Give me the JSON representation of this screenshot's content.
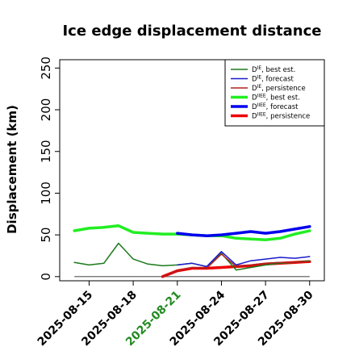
{
  "chart_data": {
    "type": "line",
    "title": "Ice edge displacement distance",
    "xlabel": "",
    "ylabel": "Displacement (km)",
    "ylim": [
      -5,
      260
    ],
    "yticks": [
      0,
      50,
      100,
      150,
      200,
      250
    ],
    "xlim": [
      "2025-08-13",
      "2025-08-31"
    ],
    "xticks": [
      "2025-08-15",
      "2025-08-18",
      "2025-08-21",
      "2025-08-24",
      "2025-08-27",
      "2025-08-30"
    ],
    "highlight_tick": "2025-08-21",
    "grid": false,
    "legend_position": "top-right",
    "colors": {
      "highlight": "#228B22",
      "axis": "#000000"
    },
    "reference_line": {
      "y": 0,
      "x_from": "2025-08-14",
      "x_to": "2025-08-30",
      "color": "#555555"
    },
    "series": [
      {
        "legend": "D_IE best est.",
        "legend_main": "D",
        "legend_sup": "IE",
        "legend_rest": ", best est.",
        "color": "#1a7a1a",
        "width": 1.5,
        "x": [
          "2025-08-14",
          "2025-08-15",
          "2025-08-16",
          "2025-08-17",
          "2025-08-18",
          "2025-08-19",
          "2025-08-20",
          "2025-08-21",
          "2025-08-22",
          "2025-08-23",
          "2025-08-24",
          "2025-08-25",
          "2025-08-26",
          "2025-08-27",
          "2025-08-28",
          "2025-08-29",
          "2025-08-30"
        ],
        "y": [
          17,
          14,
          16,
          40,
          21,
          15,
          13,
          14,
          16,
          12,
          28,
          8,
          11,
          14,
          16,
          17,
          19
        ]
      },
      {
        "legend": "D_IE forecast",
        "legend_main": "D",
        "legend_sup": "IE",
        "legend_rest": ", forecast",
        "color": "#1a1acc",
        "width": 1.5,
        "x": [
          "2025-08-21",
          "2025-08-22",
          "2025-08-23",
          "2025-08-24",
          "2025-08-25",
          "2025-08-26",
          "2025-08-27",
          "2025-08-28",
          "2025-08-29",
          "2025-08-30"
        ],
        "y": [
          14,
          16,
          12,
          30,
          14,
          19,
          21,
          23,
          22,
          24
        ]
      },
      {
        "legend": "D_IE persistence",
        "legend_main": "D",
        "legend_sup": "IE",
        "legend_rest": ", persistence",
        "color": "#b22222",
        "width": 1.5,
        "x": [
          "2025-08-20",
          "2025-08-21",
          "2025-08-22",
          "2025-08-23",
          "2025-08-24",
          "2025-08-25",
          "2025-08-26",
          "2025-08-27",
          "2025-08-28",
          "2025-08-29",
          "2025-08-30"
        ],
        "y": [
          0,
          7,
          11,
          10,
          27,
          12,
          14,
          16,
          17,
          17,
          18
        ]
      },
      {
        "legend": "D_IIEE best est.",
        "legend_main": "D",
        "legend_sup": "IIEE",
        "legend_rest": ", best est.",
        "color": "#22ee22",
        "width": 3.5,
        "x": [
          "2025-08-14",
          "2025-08-15",
          "2025-08-16",
          "2025-08-17",
          "2025-08-18",
          "2025-08-19",
          "2025-08-20",
          "2025-08-21",
          "2025-08-22",
          "2025-08-23",
          "2025-08-24",
          "2025-08-25",
          "2025-08-26",
          "2025-08-27",
          "2025-08-28",
          "2025-08-29",
          "2025-08-30"
        ],
        "y": [
          55,
          58,
          59,
          61,
          53,
          52,
          51,
          51,
          50,
          49,
          49,
          46,
          45,
          44,
          46,
          51,
          55
        ]
      },
      {
        "legend": "D_IIEE forecast",
        "legend_main": "D",
        "legend_sup": "IIEE",
        "legend_rest": ", forecast",
        "color": "#0000ee",
        "width": 3.5,
        "x": [
          "2025-08-21",
          "2025-08-22",
          "2025-08-23",
          "2025-08-24",
          "2025-08-25",
          "2025-08-26",
          "2025-08-27",
          "2025-08-28",
          "2025-08-29",
          "2025-08-30"
        ],
        "y": [
          52,
          50,
          49,
          50,
          52,
          54,
          52,
          54,
          57,
          60
        ]
      },
      {
        "legend": "D_IIEE persistence",
        "legend_main": "D",
        "legend_sup": "IIEE",
        "legend_rest": ", persistence",
        "color": "#ee0000",
        "width": 3.5,
        "x": [
          "2025-08-20",
          "2025-08-21",
          "2025-08-22",
          "2025-08-23",
          "2025-08-24",
          "2025-08-25",
          "2025-08-26",
          "2025-08-27",
          "2025-08-28",
          "2025-08-29",
          "2025-08-30"
        ],
        "y": [
          0,
          7,
          10,
          10,
          11,
          12,
          13,
          15,
          16,
          17,
          18
        ]
      }
    ]
  }
}
